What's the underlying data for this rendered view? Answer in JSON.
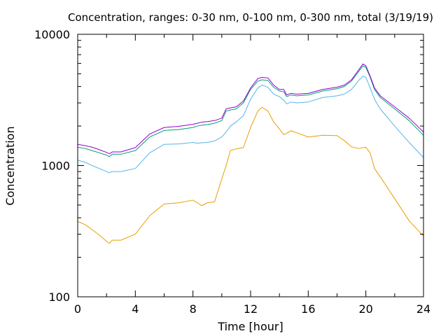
{
  "chart_data": {
    "type": "line",
    "title": "Concentration, ranges: 0-30 nm, 0-100 nm, 0-300 nm, total (3/19/19)",
    "xlabel": "Time [hour]",
    "ylabel": "Concentration",
    "xlim": [
      0,
      24
    ],
    "ylim": [
      100,
      10000
    ],
    "yscale": "log",
    "grid": false,
    "x_ticks": [
      0,
      4,
      8,
      12,
      16,
      20,
      24
    ],
    "x_tick_labels": [
      "0",
      "4",
      "8",
      "12",
      "16",
      "20",
      "24"
    ],
    "y_ticks": [
      100,
      1000,
      10000
    ],
    "y_tick_labels": [
      "100",
      "1000",
      "10000"
    ],
    "series": [
      {
        "color": "#e69f00",
        "x": [
          0,
          0.5,
          1,
          1.5,
          2,
          2.2,
          2.4,
          3,
          4,
          5,
          6,
          7,
          8,
          8.3,
          8.6,
          9,
          9.5,
          10,
          10.3,
          10.6,
          11,
          11.5,
          12,
          12.5,
          12.8,
          13.2,
          13.6,
          14,
          14.3,
          14.5,
          14.8,
          15.2,
          16,
          17,
          18,
          18.5,
          19,
          19.5,
          20,
          20.3,
          20.6,
          21,
          22,
          23,
          24
        ],
        "y": [
          375,
          355,
          325,
          295,
          265,
          255,
          270,
          270,
          300,
          415,
          510,
          520,
          545,
          520,
          495,
          520,
          530,
          790,
          1000,
          1300,
          1340,
          1370,
          1950,
          2600,
          2780,
          2600,
          2150,
          1900,
          1720,
          1760,
          1840,
          1780,
          1650,
          1700,
          1690,
          1550,
          1390,
          1350,
          1380,
          1250,
          950,
          820,
          560,
          380,
          290
        ]
      },
      {
        "color": "#56b4e9",
        "x": [
          0,
          0.5,
          1,
          1.5,
          2,
          2.2,
          2.4,
          3,
          4,
          5,
          6,
          7,
          8,
          8.3,
          8.6,
          9,
          9.5,
          10,
          10.3,
          10.6,
          11,
          11.5,
          12,
          12.5,
          12.8,
          13.2,
          13.6,
          14,
          14.3,
          14.5,
          14.8,
          15.2,
          16,
          17,
          18,
          18.5,
          19,
          19.5,
          19.8,
          20,
          20.3,
          20.6,
          21,
          22,
          23,
          24
        ],
        "y": [
          1100,
          1060,
          1000,
          950,
          900,
          880,
          900,
          900,
          950,
          1250,
          1450,
          1460,
          1500,
          1480,
          1490,
          1500,
          1540,
          1650,
          1800,
          2000,
          2150,
          2400,
          3200,
          3900,
          4100,
          3950,
          3500,
          3350,
          3150,
          2950,
          3050,
          3000,
          3050,
          3300,
          3400,
          3500,
          3800,
          4450,
          4800,
          4700,
          3900,
          3200,
          2700,
          2000,
          1500,
          1150
        ]
      },
      {
        "color": "#009e73",
        "x": [
          0,
          0.5,
          1,
          1.5,
          2,
          2.2,
          2.4,
          3,
          4,
          5,
          6,
          7,
          8,
          8.3,
          8.6,
          9,
          9.5,
          10,
          10.3,
          10.6,
          11,
          11.5,
          12,
          12.5,
          12.8,
          13.2,
          13.6,
          14,
          14.3,
          14.5,
          14.8,
          15.2,
          16,
          17,
          18,
          18.5,
          19,
          19.5,
          19.8,
          20,
          20.3,
          20.6,
          21,
          22,
          23,
          24
        ],
        "y": [
          1380,
          1350,
          1300,
          1250,
          1200,
          1170,
          1220,
          1220,
          1300,
          1650,
          1850,
          1880,
          1950,
          2000,
          2030,
          2050,
          2100,
          2200,
          2600,
          2650,
          2700,
          3000,
          3800,
          4400,
          4500,
          4450,
          3950,
          3700,
          3650,
          3350,
          3450,
          3400,
          3450,
          3700,
          3850,
          4000,
          4400,
          5200,
          5750,
          5600,
          4700,
          3800,
          3300,
          2700,
          2200,
          1700
        ]
      },
      {
        "color": "#9400d3",
        "x": [
          0,
          0.5,
          1,
          1.5,
          2,
          2.2,
          2.4,
          3,
          4,
          5,
          6,
          7,
          8,
          8.3,
          8.6,
          9,
          9.5,
          10,
          10.3,
          10.6,
          11,
          11.5,
          12,
          12.5,
          12.8,
          13.2,
          13.6,
          14,
          14.3,
          14.5,
          14.8,
          15.2,
          16,
          17,
          18,
          18.5,
          19,
          19.5,
          19.8,
          20,
          20.3,
          20.6,
          21,
          22,
          23,
          24
        ],
        "y": [
          1450,
          1420,
          1380,
          1320,
          1260,
          1230,
          1270,
          1270,
          1370,
          1740,
          1950,
          1990,
          2060,
          2100,
          2140,
          2160,
          2200,
          2300,
          2700,
          2750,
          2800,
          3100,
          3900,
          4600,
          4700,
          4650,
          4100,
          3800,
          3800,
          3450,
          3550,
          3500,
          3550,
          3800,
          3950,
          4100,
          4500,
          5350,
          5950,
          5750,
          4800,
          3900,
          3400,
          2800,
          2300,
          1800
        ]
      }
    ]
  }
}
